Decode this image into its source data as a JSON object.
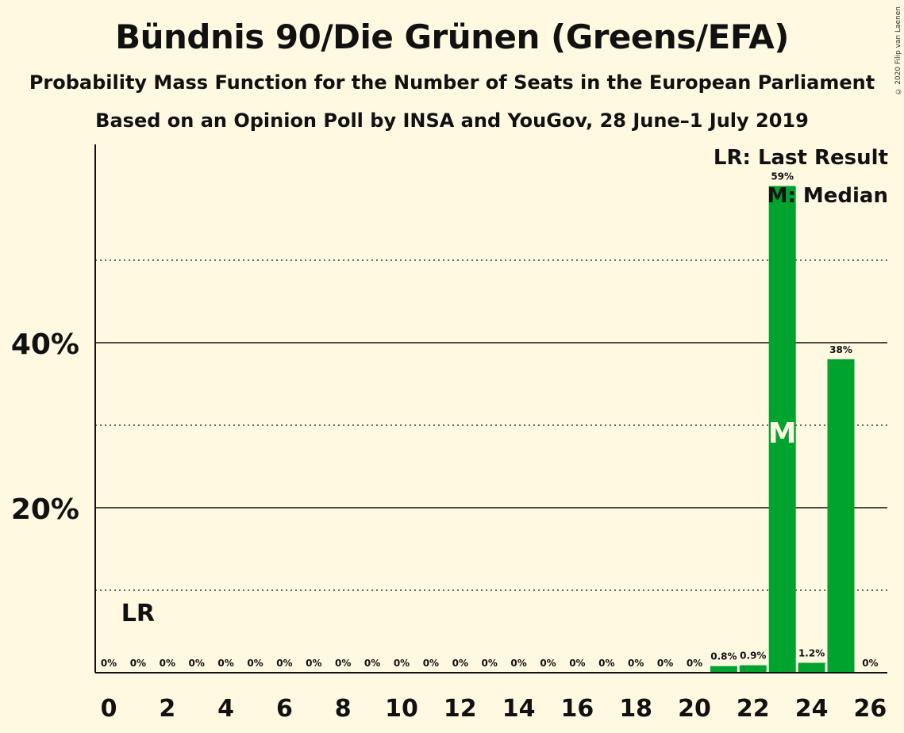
{
  "title": "Bündnis 90/Die Grünen (Greens/EFA)",
  "subtitle": "Probability Mass Function for the Number of Seats in the European Parliament",
  "subtitle2": "Based on an Opinion Poll by INSA and YouGov, 28 June–1 July 2019",
  "copyright": "© 2020 Filip van Laenen",
  "legend": {
    "last_result": "LR: Last Result",
    "median": "M: Median"
  },
  "colors": {
    "bar": "#00a32d",
    "background": "#fff9e2"
  },
  "chart_data": {
    "type": "bar",
    "x": [
      0,
      1,
      2,
      3,
      4,
      5,
      6,
      7,
      8,
      9,
      10,
      11,
      12,
      13,
      14,
      15,
      16,
      17,
      18,
      19,
      20,
      21,
      22,
      23,
      24,
      25,
      26
    ],
    "values": [
      0,
      0,
      0,
      0,
      0,
      0,
      0,
      0,
      0,
      0,
      0,
      0,
      0,
      0,
      0,
      0,
      0,
      0,
      0,
      0,
      0,
      0.8,
      0.9,
      59,
      1.2,
      38,
      0
    ],
    "value_labels": [
      "0%",
      "0%",
      "0%",
      "0%",
      "0%",
      "0%",
      "0%",
      "0%",
      "0%",
      "0%",
      "0%",
      "0%",
      "0%",
      "0%",
      "0%",
      "0%",
      "0%",
      "0%",
      "0%",
      "0%",
      "0%",
      "0.8%",
      "0.9%",
      "59%",
      "1.2%",
      "38%",
      "0%"
    ],
    "x_ticks": [
      "0",
      "2",
      "4",
      "6",
      "8",
      "10",
      "12",
      "14",
      "16",
      "18",
      "20",
      "22",
      "24",
      "26"
    ],
    "x_tick_values": [
      0,
      2,
      4,
      6,
      8,
      10,
      12,
      14,
      16,
      18,
      20,
      22,
      24,
      26
    ],
    "y_ticks": [
      "20%",
      "40%"
    ],
    "y_tick_values": [
      20,
      40
    ],
    "y_minor_gridlines": [
      10,
      30,
      50
    ],
    "ylim": [
      0,
      64
    ],
    "last_result_seat": 1,
    "last_result_label": "LR",
    "median_seat": 23,
    "median_label": "M"
  }
}
